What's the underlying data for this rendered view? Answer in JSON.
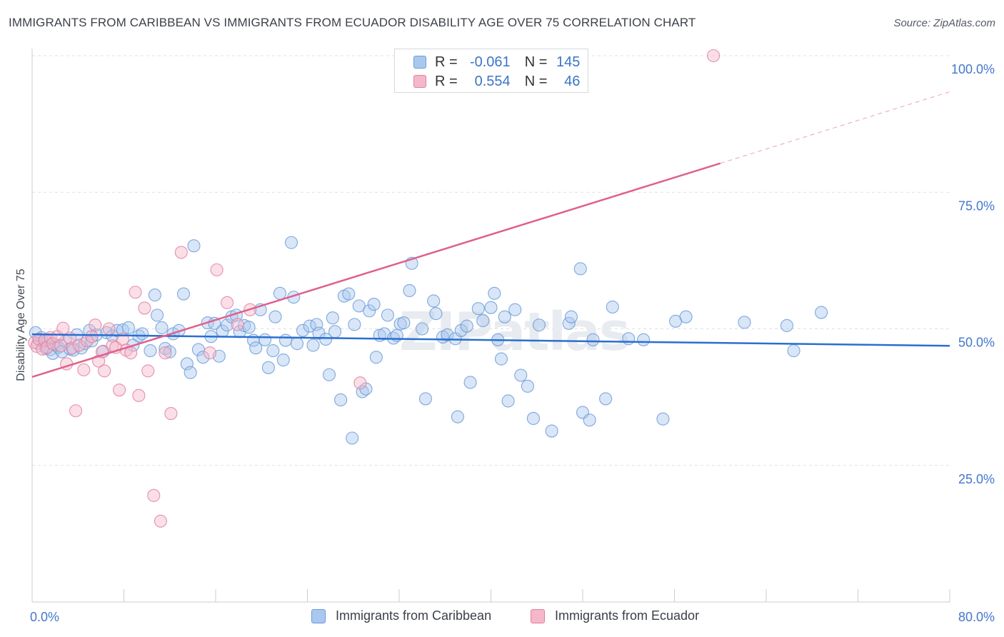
{
  "title": "IMMIGRANTS FROM CARIBBEAN VS IMMIGRANTS FROM ECUADOR DISABILITY AGE OVER 75 CORRELATION CHART",
  "source": "Source: ZipAtlas.com",
  "watermark": "ZIPatlas",
  "colors": {
    "blue_fill": "#aac8ee",
    "blue_stroke": "#6a9bd8",
    "blue_line": "#2a6fd0",
    "pink_fill": "#f5b8ca",
    "pink_stroke": "#e27fa0",
    "pink_line": "#e0608c",
    "axis_label": "#4477cc",
    "grid": "#dde0e5"
  },
  "legend": {
    "rows": [
      {
        "r_label": "R =",
        "r_value": "-0.061",
        "n_label": "N =",
        "n_value": "145",
        "series": "blue"
      },
      {
        "r_label": "R =",
        "r_value": "0.554",
        "n_label": "N =",
        "n_value": "46",
        "series": "pink"
      }
    ]
  },
  "chart_data": {
    "type": "scatter",
    "title": "IMMIGRANTS FROM CARIBBEAN VS IMMIGRANTS FROM ECUADOR DISABILITY AGE OVER 75 CORRELATION CHART",
    "xlabel": "",
    "ylabel": "Disability Age Over 75",
    "xlim": [
      0,
      80
    ],
    "ylim": [
      0,
      100
    ],
    "x_tick_labels": [
      "0.0%",
      "80.0%"
    ],
    "y_ticks": [
      25,
      50,
      75,
      100
    ],
    "y_tick_labels": [
      "25.0%",
      "50.0%",
      "75.0%",
      "100.0%"
    ],
    "grid": true,
    "legend_position": "top-center",
    "series": [
      {
        "name": "Immigrants from Caribbean",
        "color": "blue",
        "r": -0.061,
        "n": 145,
        "trend": {
          "x": [
            0,
            80
          ],
          "y": [
            49.0,
            46.9
          ]
        },
        "points": [
          [
            0.3,
            49.3
          ],
          [
            0.5,
            47.3
          ],
          [
            0.8,
            48.4
          ],
          [
            1.0,
            47.5
          ],
          [
            1.2,
            46.4
          ],
          [
            1.4,
            48.0
          ],
          [
            1.6,
            46.2
          ],
          [
            1.8,
            45.5
          ],
          [
            2.1,
            47.0
          ],
          [
            2.3,
            46.6
          ],
          [
            2.6,
            45.8
          ],
          [
            2.9,
            47.7
          ],
          [
            3.3,
            46.3
          ],
          [
            3.6,
            46.1
          ],
          [
            3.9,
            48.9
          ],
          [
            4.3,
            46.5
          ],
          [
            4.6,
            47.3
          ],
          [
            5.0,
            49.7
          ],
          [
            5.2,
            47.8
          ],
          [
            5.6,
            48.9
          ],
          [
            6.2,
            45.9
          ],
          [
            6.5,
            49.3
          ],
          [
            7.0,
            48.7
          ],
          [
            7.4,
            49.7
          ],
          [
            7.9,
            49.8
          ],
          [
            8.4,
            50.2
          ],
          [
            8.8,
            47.0
          ],
          [
            9.3,
            48.7
          ],
          [
            9.6,
            49.1
          ],
          [
            10.3,
            46.0
          ],
          [
            10.7,
            56.2
          ],
          [
            10.9,
            52.5
          ],
          [
            11.3,
            50.2
          ],
          [
            11.6,
            46.4
          ],
          [
            12.0,
            45.8
          ],
          [
            12.3,
            49.1
          ],
          [
            12.8,
            49.7
          ],
          [
            13.2,
            56.4
          ],
          [
            13.5,
            43.6
          ],
          [
            13.8,
            42.0
          ],
          [
            14.1,
            65.2
          ],
          [
            14.5,
            46.2
          ],
          [
            14.9,
            44.8
          ],
          [
            15.3,
            51.1
          ],
          [
            15.6,
            48.6
          ],
          [
            15.9,
            51.0
          ],
          [
            16.3,
            45.0
          ],
          [
            16.6,
            49.6
          ],
          [
            17.0,
            50.7
          ],
          [
            17.4,
            52.2
          ],
          [
            17.8,
            52.5
          ],
          [
            18.1,
            49.5
          ],
          [
            18.5,
            50.6
          ],
          [
            18.9,
            50.3
          ],
          [
            19.3,
            47.9
          ],
          [
            19.5,
            46.5
          ],
          [
            19.9,
            53.5
          ],
          [
            20.3,
            48.0
          ],
          [
            20.6,
            42.9
          ],
          [
            21.0,
            46.0
          ],
          [
            21.2,
            52.2
          ],
          [
            21.6,
            56.5
          ],
          [
            21.9,
            44.3
          ],
          [
            22.1,
            47.9
          ],
          [
            22.6,
            65.8
          ],
          [
            22.8,
            55.8
          ],
          [
            23.1,
            47.3
          ],
          [
            23.6,
            49.7
          ],
          [
            24.2,
            50.5
          ],
          [
            24.5,
            47.0
          ],
          [
            24.8,
            50.8
          ],
          [
            25.0,
            49.2
          ],
          [
            25.6,
            48.1
          ],
          [
            25.9,
            41.6
          ],
          [
            26.2,
            52.0
          ],
          [
            26.4,
            49.5
          ],
          [
            26.9,
            37.0
          ],
          [
            27.2,
            56.0
          ],
          [
            27.6,
            56.4
          ],
          [
            27.9,
            30.0
          ],
          [
            28.1,
            50.8
          ],
          [
            28.5,
            54.2
          ],
          [
            28.8,
            38.5
          ],
          [
            29.1,
            39.0
          ],
          [
            29.4,
            53.3
          ],
          [
            29.8,
            54.5
          ],
          [
            30.0,
            44.8
          ],
          [
            30.3,
            48.8
          ],
          [
            30.7,
            49.1
          ],
          [
            31.0,
            52.5
          ],
          [
            31.5,
            48.3
          ],
          [
            31.8,
            48.8
          ],
          [
            32.1,
            50.9
          ],
          [
            32.4,
            51.1
          ],
          [
            32.9,
            57.0
          ],
          [
            33.1,
            62.0
          ],
          [
            34.0,
            50.0
          ],
          [
            34.3,
            37.2
          ],
          [
            35.0,
            55.1
          ],
          [
            35.2,
            52.8
          ],
          [
            35.8,
            48.5
          ],
          [
            36.2,
            48.9
          ],
          [
            36.9,
            48.2
          ],
          [
            37.1,
            33.9
          ],
          [
            37.4,
            49.7
          ],
          [
            37.9,
            50.5
          ],
          [
            38.2,
            40.2
          ],
          [
            38.9,
            53.7
          ],
          [
            39.3,
            51.5
          ],
          [
            40.0,
            53.9
          ],
          [
            40.3,
            56.5
          ],
          [
            40.6,
            48.0
          ],
          [
            40.9,
            44.5
          ],
          [
            41.2,
            52.2
          ],
          [
            41.5,
            36.8
          ],
          [
            42.1,
            53.5
          ],
          [
            42.6,
            41.5
          ],
          [
            43.2,
            39.5
          ],
          [
            43.7,
            33.6
          ],
          [
            44.2,
            50.7
          ],
          [
            45.3,
            31.3
          ],
          [
            46.8,
            51.0
          ],
          [
            47.0,
            52.2
          ],
          [
            47.8,
            61.0
          ],
          [
            48.0,
            34.7
          ],
          [
            48.6,
            33.3
          ],
          [
            48.9,
            48.0
          ],
          [
            50.0,
            37.2
          ],
          [
            50.6,
            54.0
          ],
          [
            52.0,
            48.2
          ],
          [
            53.3,
            48.0
          ],
          [
            55.0,
            33.5
          ],
          [
            56.1,
            51.4
          ],
          [
            57.0,
            52.2
          ],
          [
            62.1,
            51.2
          ],
          [
            65.8,
            50.6
          ],
          [
            66.4,
            46.0
          ],
          [
            68.8,
            53.0
          ]
        ]
      },
      {
        "name": "Immigrants from Ecuador",
        "color": "pink",
        "r": 0.554,
        "n": 46,
        "trend": {
          "x": [
            0,
            60
          ],
          "y": [
            41.2,
            80.3
          ]
        },
        "trend_extension": {
          "x": [
            60,
            80
          ],
          "y": [
            80.3,
            93.4
          ]
        },
        "points": [
          [
            0.2,
            47.5
          ],
          [
            0.4,
            46.8
          ],
          [
            0.6,
            48.1
          ],
          [
            0.9,
            46.3
          ],
          [
            1.1,
            47.9
          ],
          [
            1.3,
            46.6
          ],
          [
            1.6,
            48.4
          ],
          [
            1.8,
            47.3
          ],
          [
            2.2,
            48.6
          ],
          [
            2.5,
            46.9
          ],
          [
            2.7,
            50.1
          ],
          [
            3.0,
            43.6
          ],
          [
            3.3,
            48.3
          ],
          [
            3.5,
            46.5
          ],
          [
            3.8,
            35.0
          ],
          [
            4.1,
            47.0
          ],
          [
            4.5,
            42.5
          ],
          [
            4.8,
            47.8
          ],
          [
            5.2,
            48.6
          ],
          [
            5.5,
            50.7
          ],
          [
            5.8,
            44.1
          ],
          [
            6.1,
            45.8
          ],
          [
            6.3,
            42.3
          ],
          [
            6.7,
            50.0
          ],
          [
            7.0,
            46.9
          ],
          [
            7.3,
            46.6
          ],
          [
            7.6,
            38.8
          ],
          [
            7.9,
            48.1
          ],
          [
            8.2,
            46.1
          ],
          [
            8.6,
            45.6
          ],
          [
            9.0,
            56.7
          ],
          [
            9.3,
            37.8
          ],
          [
            9.8,
            53.8
          ],
          [
            10.1,
            42.3
          ],
          [
            10.6,
            19.5
          ],
          [
            11.2,
            14.8
          ],
          [
            11.6,
            45.6
          ],
          [
            12.1,
            34.5
          ],
          [
            13.0,
            64.0
          ],
          [
            15.5,
            45.6
          ],
          [
            16.1,
            60.8
          ],
          [
            17.0,
            54.8
          ],
          [
            17.9,
            50.8
          ],
          [
            19.0,
            53.5
          ],
          [
            28.6,
            40.1
          ],
          [
            59.4,
            100.0
          ]
        ]
      }
    ]
  },
  "bottom_legend": {
    "items": [
      {
        "label": "Immigrants from Caribbean",
        "series": "blue"
      },
      {
        "label": "Immigrants from Ecuador",
        "series": "pink"
      }
    ]
  }
}
